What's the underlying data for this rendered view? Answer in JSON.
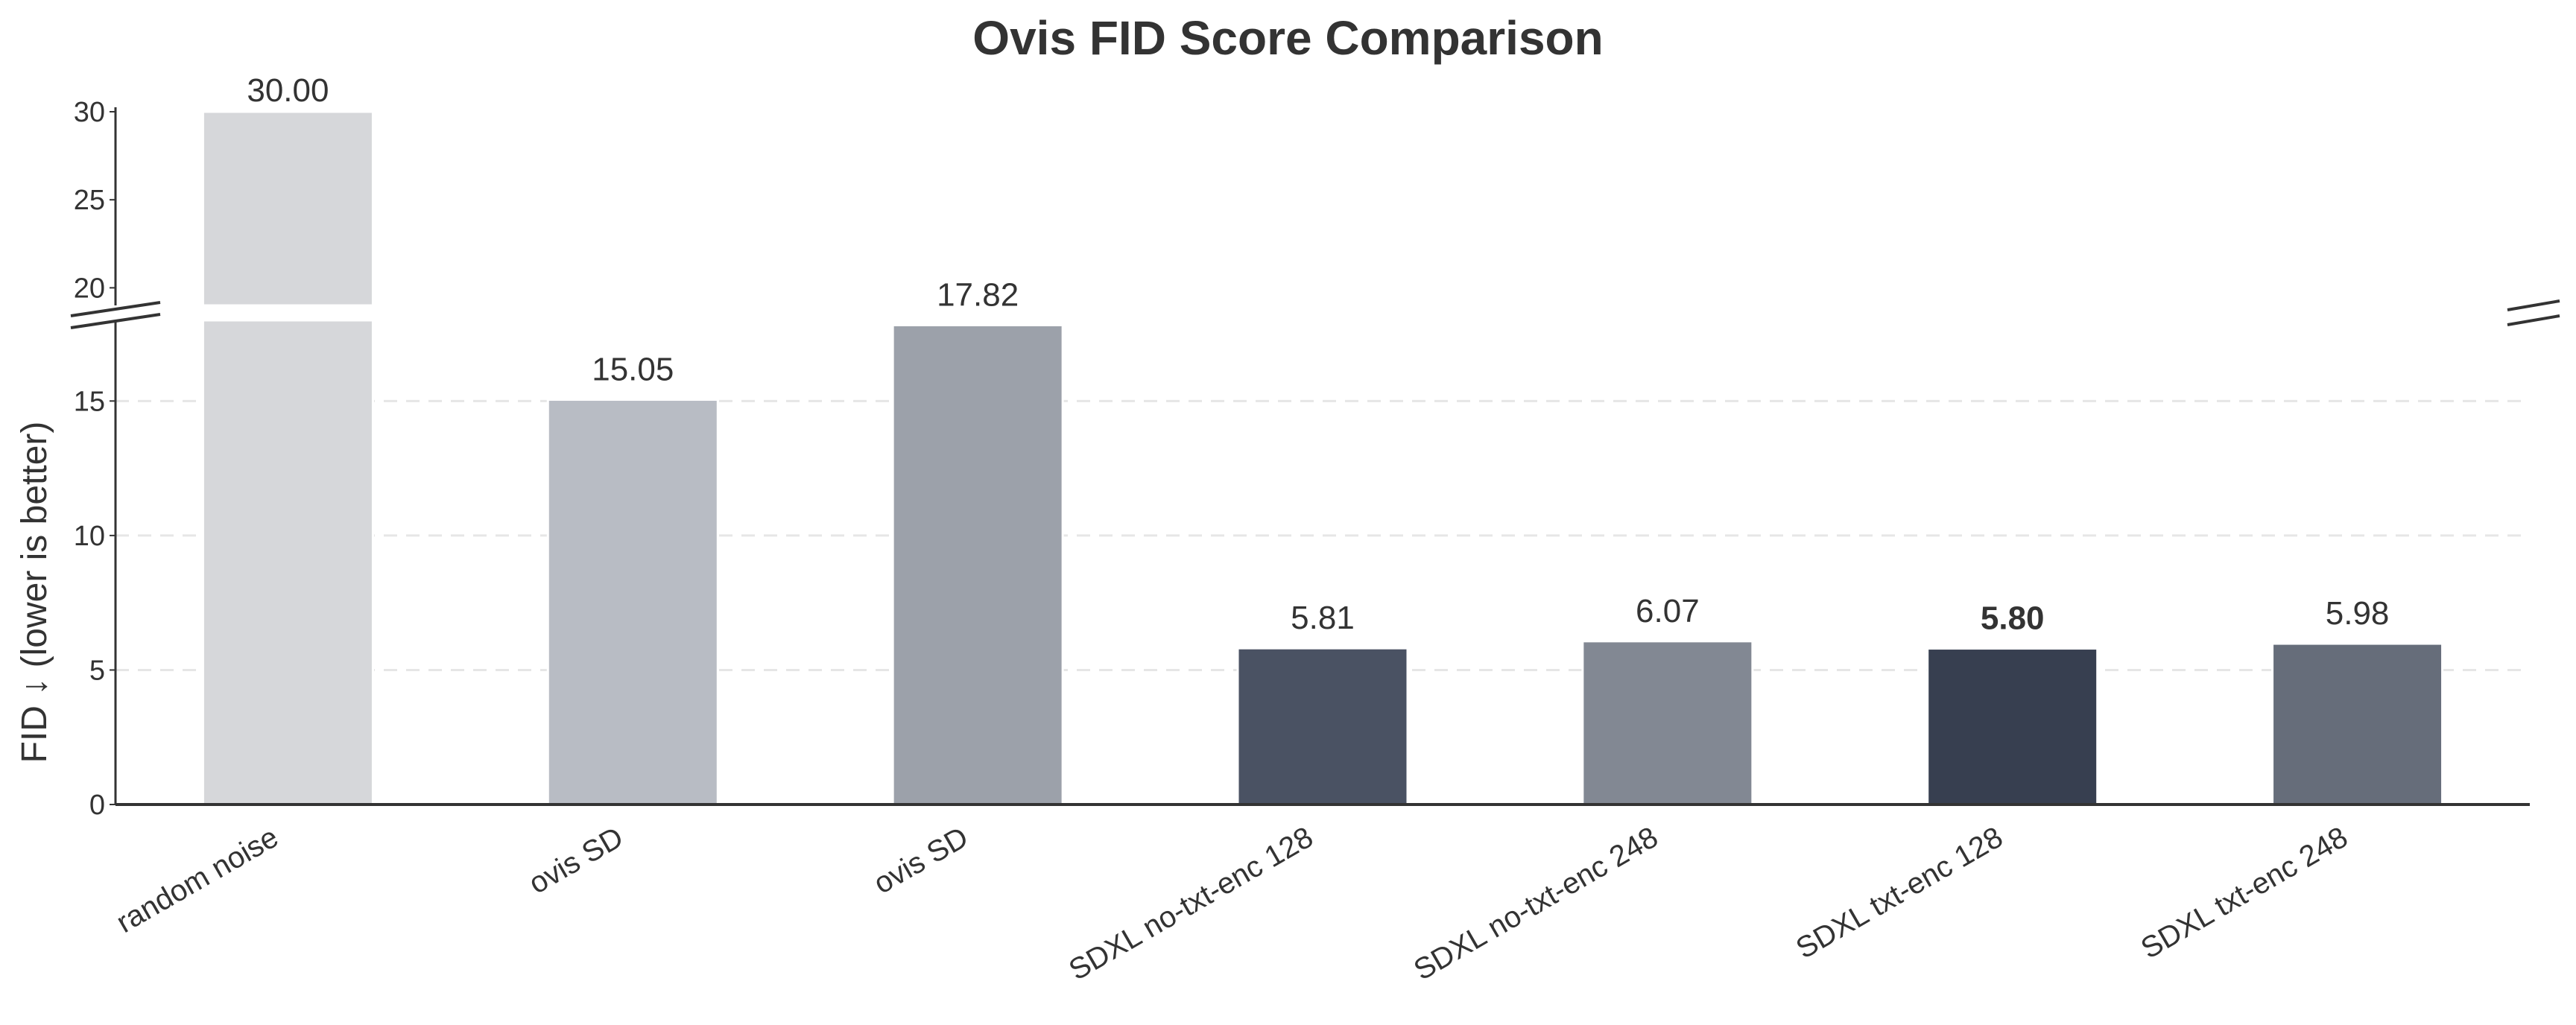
{
  "chart_data": {
    "type": "bar",
    "title": "Ovis FID Score Comparison",
    "ylabel": "FID ↓ (lower is better)",
    "xlabel": "",
    "categories": [
      "random noise",
      "ovis SD",
      "ovis SD",
      "SDXL no-txt-enc 128",
      "SDXL no-txt-enc 248",
      "SDXL txt-enc 128",
      "SDXL txt-enc 248"
    ],
    "values": [
      30.0,
      15.05,
      17.82,
      5.81,
      6.07,
      5.8,
      5.98
    ],
    "value_labels": [
      "30.00",
      "15.05",
      "17.82",
      "5.81",
      "6.07",
      "5.80",
      "5.98"
    ],
    "highlight_index": 5,
    "colors": [
      "#d6d7da",
      "#b8bcc4",
      "#9ca1aa",
      "#4a5263",
      "#828893",
      "#373f50",
      "#666d7a"
    ],
    "broken_axis": true,
    "lower_axis": {
      "ylim": [
        0,
        18
      ],
      "ticks": [
        0,
        5,
        10,
        15
      ],
      "tick_labels": [
        "0",
        "5",
        "10",
        "15"
      ]
    },
    "upper_axis": {
      "ylim": [
        19,
        30
      ],
      "ticks": [
        20,
        25,
        30
      ],
      "tick_labels": [
        "20",
        "25",
        "30"
      ]
    },
    "grid": "horizontal-dashed"
  }
}
